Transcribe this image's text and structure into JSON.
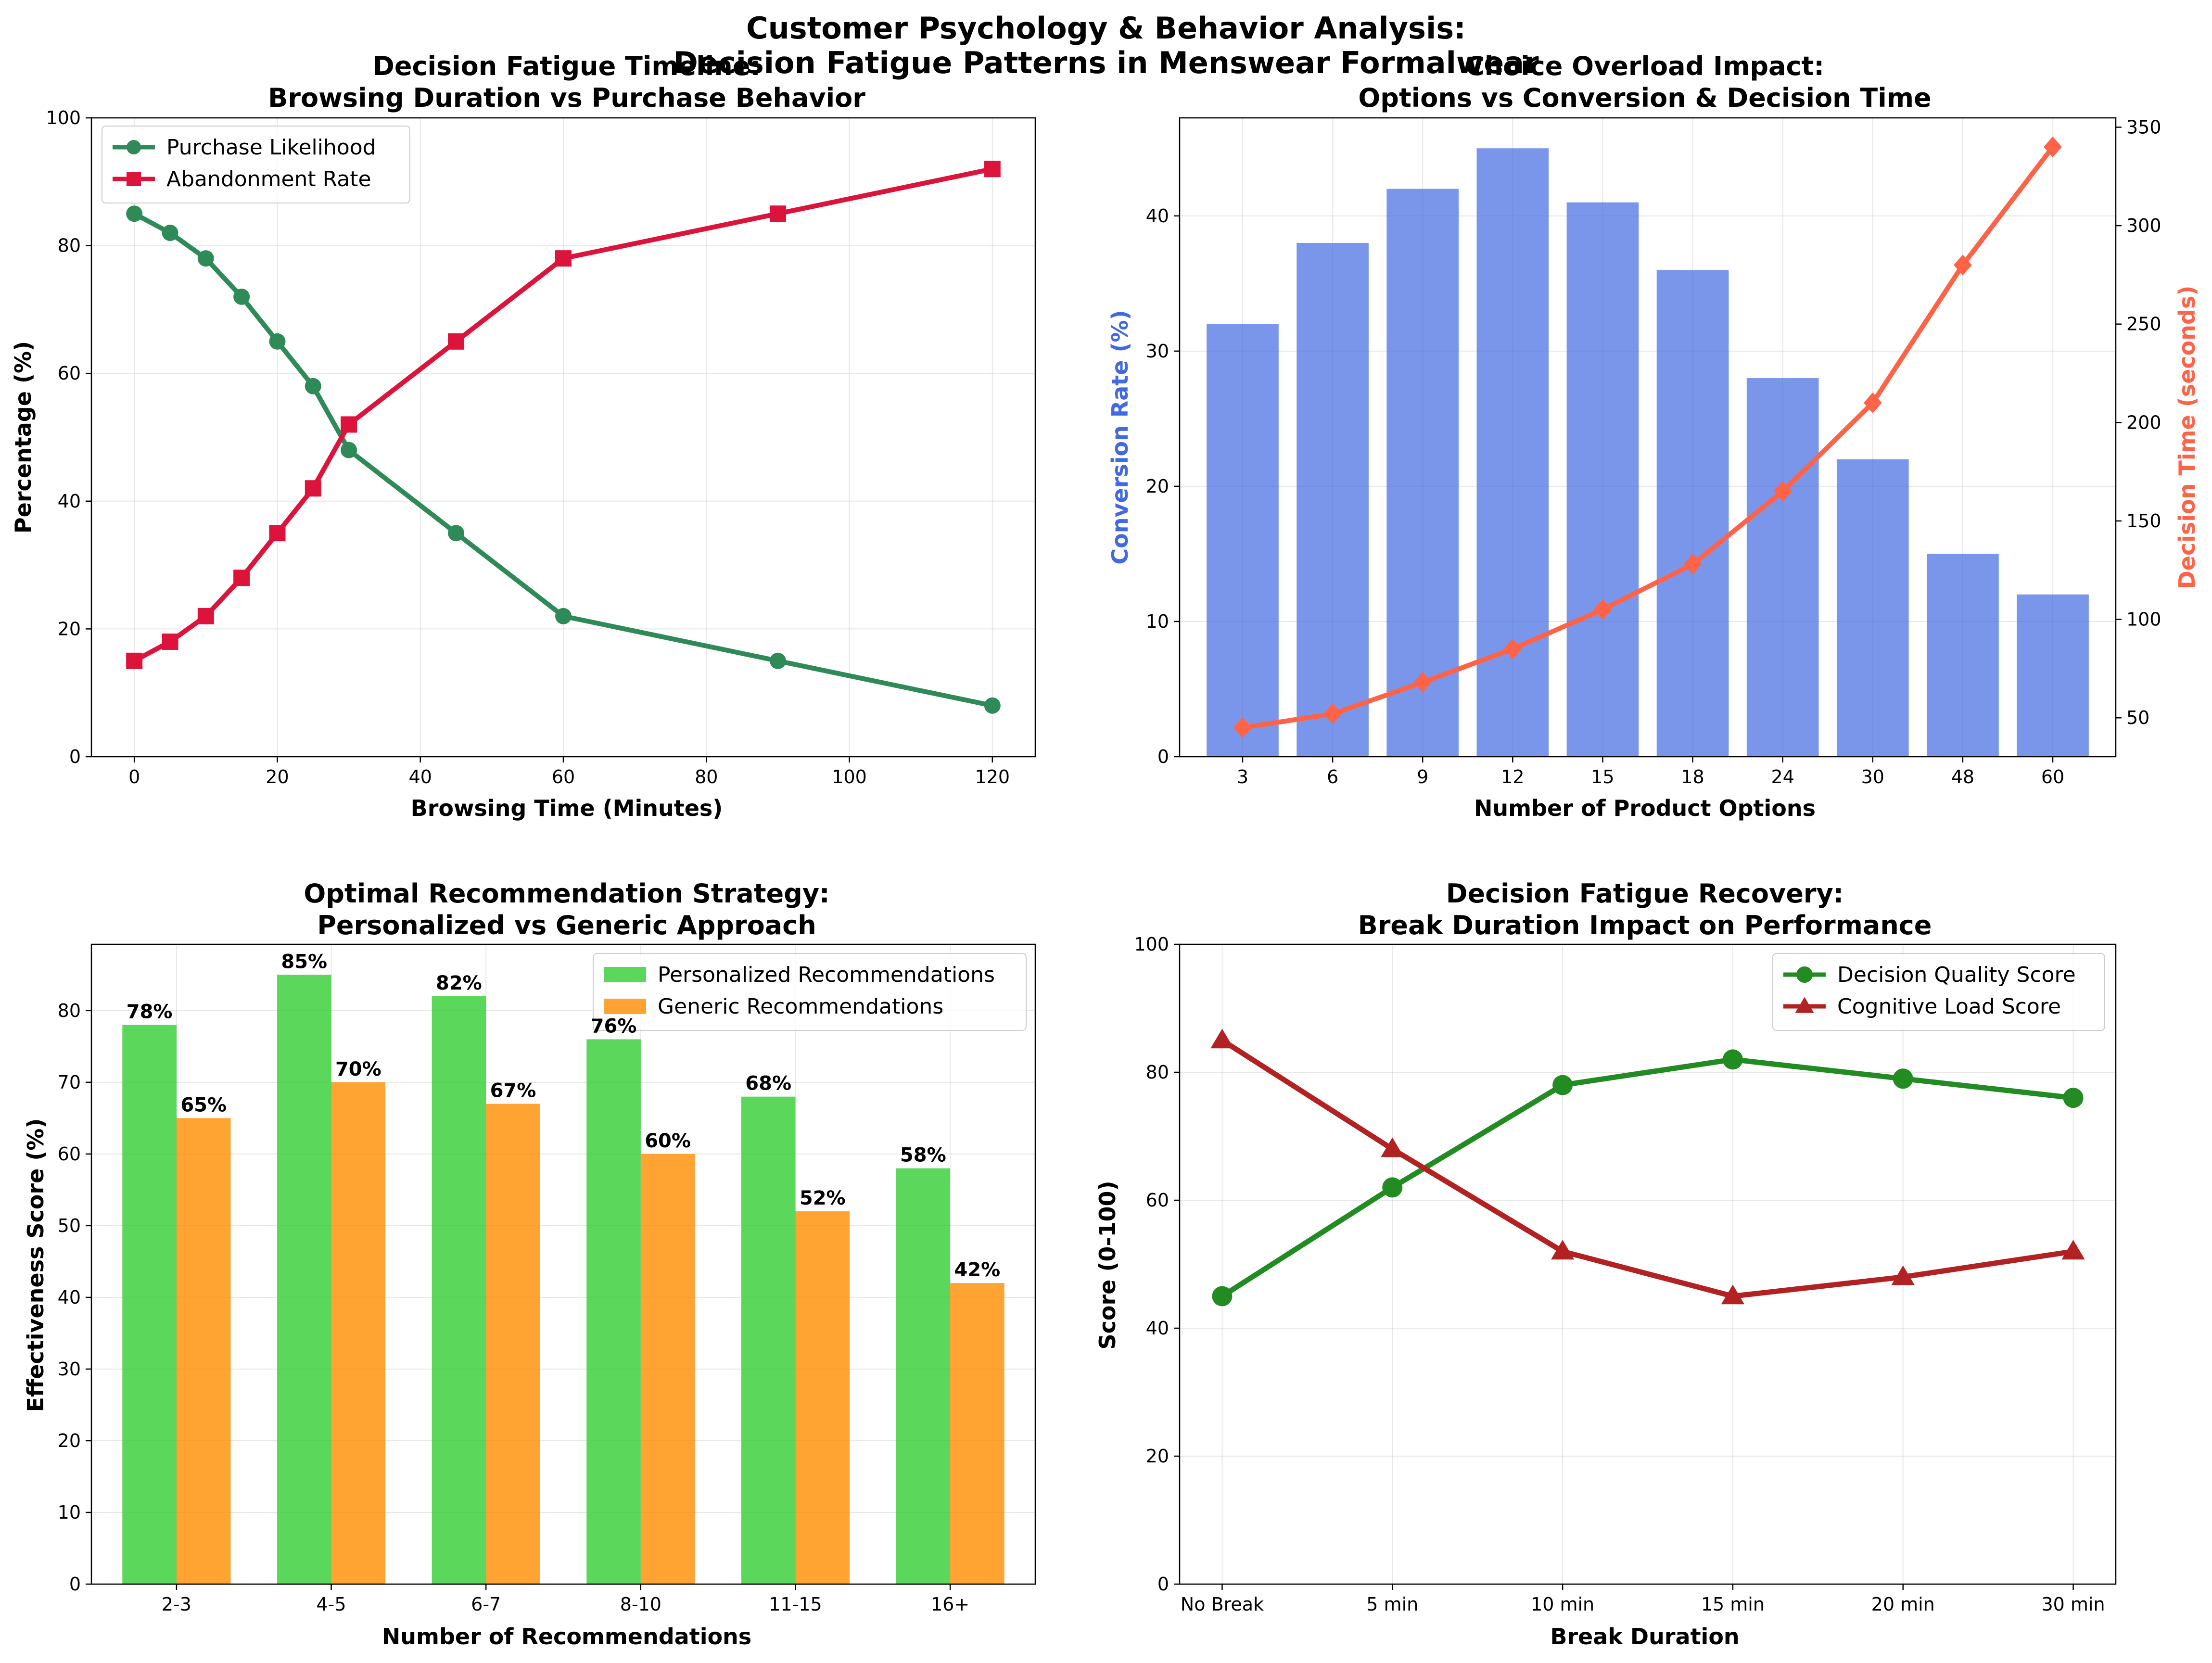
{
  "figure": {
    "suptitle_line1": "Customer Psychology & Behavior Analysis:",
    "suptitle_line2": "Decision Fatigue Patterns in Menswear Formalwear"
  },
  "colors": {
    "purchase": "#2e8b57",
    "abandon": "#dc143c",
    "conversion_bars": "#4169e1",
    "decision_time": "#ff6347",
    "personalized": "#32cd32",
    "generic": "#ff8c00",
    "quality": "#228b22",
    "cognitive": "#b22222"
  },
  "chart_data": [
    {
      "id": "fatigue_timeline",
      "type": "line",
      "title_line1": "Decision Fatigue Timeline:",
      "title_line2": "Browsing Duration vs Purchase Behavior",
      "xlabel": "Browsing Time (Minutes)",
      "ylabel": "Percentage (%)",
      "xlim": [
        -6,
        126
      ],
      "ylim": [
        0,
        100
      ],
      "xticks": [
        0,
        20,
        40,
        60,
        80,
        100,
        120
      ],
      "yticks": [
        0,
        20,
        40,
        60,
        80,
        100
      ],
      "x": [
        0,
        5,
        10,
        15,
        20,
        25,
        30,
        45,
        60,
        90,
        120
      ],
      "series": [
        {
          "name": "Purchase Likelihood",
          "marker": "circle",
          "color_key": "purchase",
          "values": [
            85,
            82,
            78,
            72,
            65,
            58,
            48,
            35,
            22,
            15,
            8
          ]
        },
        {
          "name": "Abandonment Rate",
          "marker": "square",
          "color_key": "abandon",
          "values": [
            15,
            18,
            22,
            28,
            35,
            42,
            52,
            65,
            78,
            85,
            92
          ]
        }
      ],
      "legend": "upper-left",
      "grid": true
    },
    {
      "id": "choice_overload",
      "type": "bar",
      "title_line1": "Choice Overload Impact:",
      "title_line2": "Options vs Conversion & Decision Time",
      "xlabel": "Number of Product Options",
      "ylabel": "Conversion Rate (%)",
      "ylabel_right": "Decision Time (seconds)",
      "categories": [
        "3",
        "6",
        "9",
        "12",
        "15",
        "18",
        "24",
        "30",
        "48",
        "60"
      ],
      "ylim": [
        0,
        47.25
      ],
      "yticks": [
        0,
        10,
        20,
        30,
        40
      ],
      "ylim_right": [
        30.25,
        354.75
      ],
      "yticks_right": [
        50,
        100,
        150,
        200,
        250,
        300,
        350
      ],
      "series": [
        {
          "name": "Conversion Rate",
          "kind": "bar",
          "color_key": "conversion_bars",
          "values": [
            32,
            38,
            42,
            45,
            41,
            36,
            28,
            22,
            15,
            12
          ]
        },
        {
          "name": "Decision Time",
          "kind": "line",
          "axis": "right",
          "marker": "diamond",
          "color_key": "decision_time",
          "values": [
            45,
            52,
            68,
            85,
            105,
            128,
            165,
            210,
            280,
            340
          ]
        }
      ],
      "grid": true
    },
    {
      "id": "recommendation_strategy",
      "type": "bar",
      "title_line1": "Optimal Recommendation Strategy:",
      "title_line2": "Personalized vs Generic Approach",
      "xlabel": "Number of Recommendations",
      "ylabel": "Effectiveness Score (%)",
      "categories": [
        "2-3",
        "4-5",
        "6-7",
        "8-10",
        "11-15",
        "16+"
      ],
      "ylim": [
        0,
        89.25
      ],
      "yticks": [
        0,
        10,
        20,
        30,
        40,
        50,
        60,
        70,
        80
      ],
      "series": [
        {
          "name": "Personalized Recommendations",
          "color_key": "personalized",
          "values": [
            78,
            85,
            82,
            76,
            68,
            58
          ],
          "labels": [
            "78%",
            "85%",
            "82%",
            "76%",
            "68%",
            "58%"
          ]
        },
        {
          "name": "Generic Recommendations",
          "color_key": "generic",
          "values": [
            65,
            70,
            67,
            60,
            52,
            42
          ],
          "labels": [
            "65%",
            "70%",
            "67%",
            "60%",
            "52%",
            "42%"
          ]
        }
      ],
      "legend": "upper-right",
      "grid": true
    },
    {
      "id": "fatigue_recovery",
      "type": "line",
      "title_line1": "Decision Fatigue Recovery:",
      "title_line2": "Break Duration Impact on Performance",
      "xlabel": "Break Duration",
      "ylabel": "Score (0-100)",
      "categories": [
        "No Break",
        "5 min",
        "10 min",
        "15 min",
        "20 min",
        "30 min"
      ],
      "ylim": [
        0,
        100
      ],
      "yticks": [
        0,
        20,
        40,
        60,
        80,
        100
      ],
      "series": [
        {
          "name": "Decision Quality Score",
          "marker": "circle",
          "color_key": "quality",
          "values": [
            45,
            62,
            78,
            82,
            79,
            76
          ]
        },
        {
          "name": "Cognitive Load Score",
          "marker": "triangle",
          "color_key": "cognitive",
          "values": [
            85,
            68,
            52,
            45,
            48,
            52
          ]
        }
      ],
      "legend": "upper-right",
      "grid": true
    }
  ]
}
